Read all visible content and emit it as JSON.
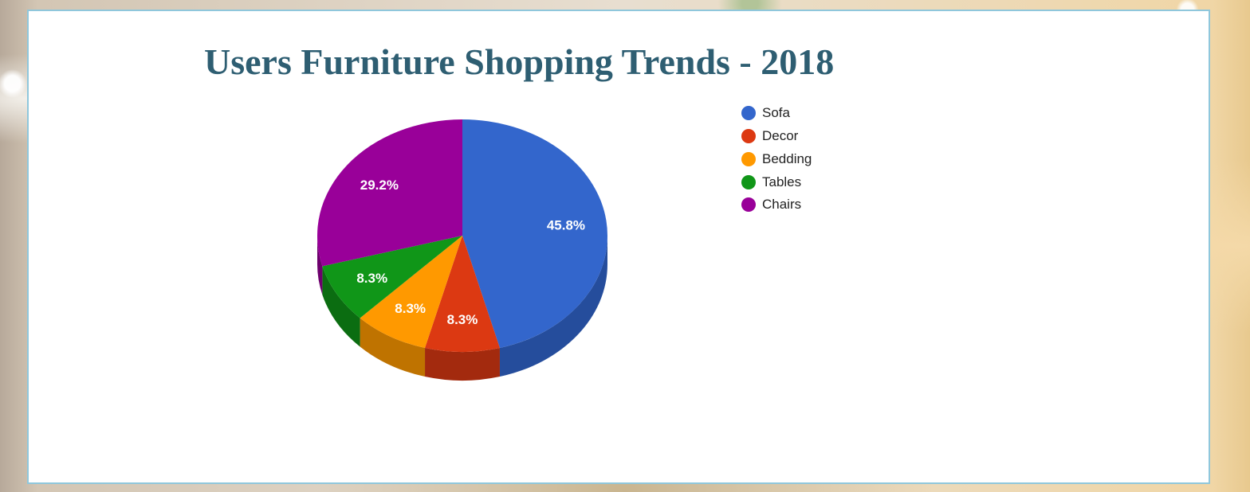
{
  "chart_data": {
    "type": "pie",
    "title": "Users Furniture Shopping Trends - 2018",
    "three_d": true,
    "legend_position": "right",
    "slices": [
      {
        "label": "Sofa",
        "value": 45.8,
        "value_label": "45.8%",
        "color": "#3366cc",
        "side_color": "#254d9c"
      },
      {
        "label": "Decor",
        "value": 8.3,
        "value_label": "8.3%",
        "color": "#dc3912",
        "side_color": "#a32a0e"
      },
      {
        "label": "Bedding",
        "value": 8.3,
        "value_label": "8.3%",
        "color": "#ff9900",
        "side_color": "#bf7300"
      },
      {
        "label": "Tables",
        "value": 8.3,
        "value_label": "8.3%",
        "color": "#109618",
        "side_color": "#0b6d11"
      },
      {
        "label": "Chairs",
        "value": 29.2,
        "value_label": "29.2%",
        "color": "#990099",
        "side_color": "#6d006d"
      }
    ]
  }
}
